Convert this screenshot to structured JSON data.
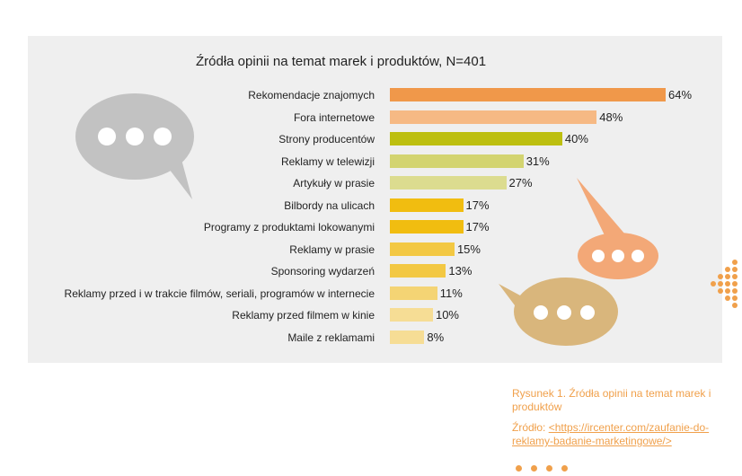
{
  "chart_data": {
    "type": "bar",
    "orientation": "horizontal",
    "title": "Źródła opinii na temat marek i produktów, N=401",
    "categories": [
      "Rekomendacje znajomych",
      "Fora internetowe",
      "Strony producentów",
      "Reklamy w telewizji",
      "Artykuły w prasie",
      "Bilbordy na ulicach",
      "Programy z produktami lokowanymi",
      "Reklamy w prasie",
      "Sponsoring wydarzeń",
      "Reklamy przed i w trakcie filmów, seriali, programów w internecie",
      "Reklamy przed filmem w kinie",
      "Maile z reklamami"
    ],
    "values": [
      64,
      48,
      40,
      31,
      27,
      17,
      17,
      15,
      13,
      11,
      10,
      8
    ],
    "value_labels": [
      "64%",
      "48%",
      "40%",
      "31%",
      "27%",
      "17%",
      "17%",
      "15%",
      "13%",
      "11%",
      "10%",
      "8%"
    ],
    "unit": "%",
    "bar_colors": [
      "#f0984a",
      "#f6b984",
      "#bdbf10",
      "#d3d470",
      "#dcdc8f",
      "#f1bd10",
      "#f1bd10",
      "#f3c843",
      "#f3c843",
      "#f4d474",
      "#f6dd95",
      "#f6dd95"
    ],
    "grid": false,
    "legend": "none"
  },
  "caption": {
    "figure": "Rysunek 1. Źródła opinii na temat marek i produktów",
    "source_prefix": "Źródło: ",
    "source_link": "<https://ircenter.com/zaufanie-do-reklamy-badanie-marketingowe/>"
  },
  "colors": {
    "panel_bg": "#efefef",
    "accent_orange": "#f0a04b",
    "bubble_gray": "#c2c2c2",
    "bubble_orange": "#f3a877",
    "bubble_tan": "#d9b67c"
  }
}
